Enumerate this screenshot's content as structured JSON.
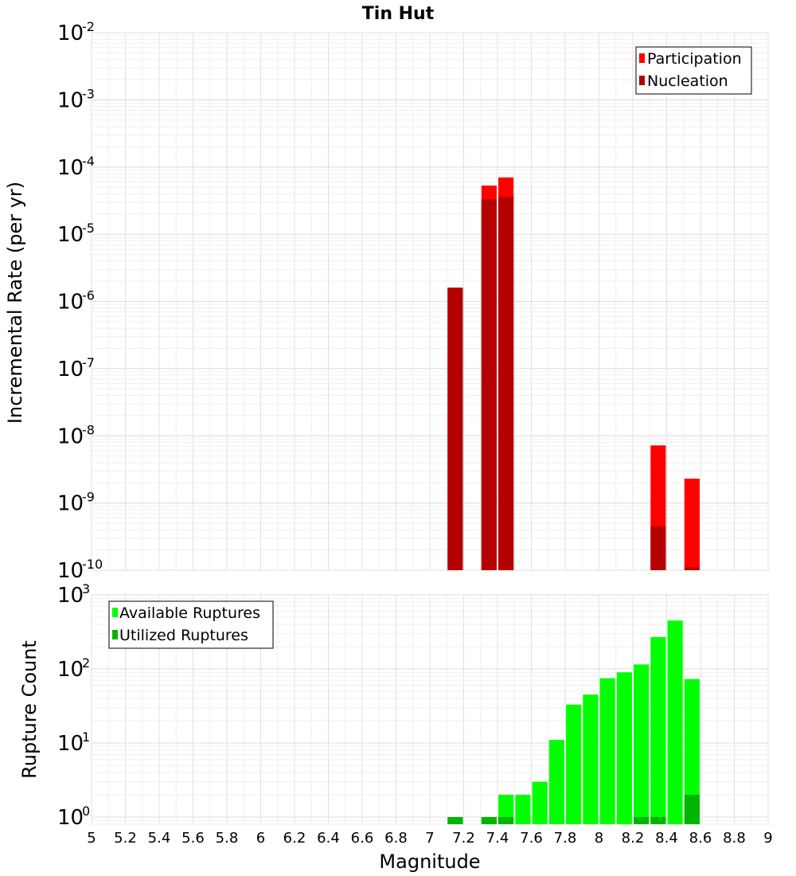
{
  "title": "Tin Hut",
  "xlabel": "Magnitude",
  "chart_data": [
    {
      "type": "bar",
      "panel": "top",
      "ylabel": "Incremental Rate (per yr)",
      "yscale": "log",
      "ylim": [
        1e-10,
        0.01
      ],
      "xlim": [
        5,
        9
      ],
      "bar_width": 0.09,
      "grid": true,
      "legend_position": "top-right",
      "series": [
        {
          "name": "Participation",
          "color": "#ff0000",
          "x": [
            7.15,
            7.35,
            7.45,
            8.35,
            8.55
          ],
          "values": [
            1.6e-06,
            5.3e-05,
            7e-05,
            7.2e-09,
            2.3e-09
          ]
        },
        {
          "name": "Nucleation",
          "color": "#b40000",
          "x": [
            7.15,
            7.35,
            7.45,
            8.35,
            8.55
          ],
          "values": [
            1.6e-06,
            3.3e-05,
            3.6e-05,
            4.5e-10,
            1.1e-10
          ]
        }
      ]
    },
    {
      "type": "bar",
      "panel": "bottom",
      "ylabel": "Rupture Count",
      "yscale": "log",
      "ylim": [
        0.8,
        1000
      ],
      "xlim": [
        5,
        9
      ],
      "bar_width": 0.09,
      "grid": true,
      "legend_position": "top-left",
      "series": [
        {
          "name": "Available Ruptures",
          "color": "#00ff00",
          "x": [
            7.15,
            7.35,
            7.45,
            7.55,
            7.65,
            7.75,
            7.85,
            7.95,
            8.05,
            8.15,
            8.25,
            8.35,
            8.45,
            8.55
          ],
          "values": [
            1,
            1,
            2,
            2,
            3,
            11,
            33,
            45,
            75,
            90,
            115,
            270,
            450,
            73
          ]
        },
        {
          "name": "Utilized Ruptures",
          "color": "#00b400",
          "x": [
            7.15,
            7.35,
            7.45,
            8.25,
            8.35,
            8.55
          ],
          "values": [
            1,
            1,
            1,
            1,
            1,
            2
          ]
        }
      ]
    }
  ],
  "xticks": [
    "5",
    "5.2",
    "5.4",
    "5.6",
    "5.8",
    "6",
    "6.2",
    "6.4",
    "6.6",
    "6.8",
    "7",
    "7.2",
    "7.4",
    "7.6",
    "7.8",
    "8",
    "8.2",
    "8.4",
    "8.6",
    "8.8",
    "9"
  ],
  "top_yticks": {
    "base": "10",
    "exponents": [
      "-10",
      "-9",
      "-8",
      "-7",
      "-6",
      "-5",
      "-4",
      "-3",
      "-2"
    ]
  },
  "bottom_yticks": {
    "base": "10",
    "exponents": [
      "0",
      "1",
      "2",
      "3"
    ]
  }
}
